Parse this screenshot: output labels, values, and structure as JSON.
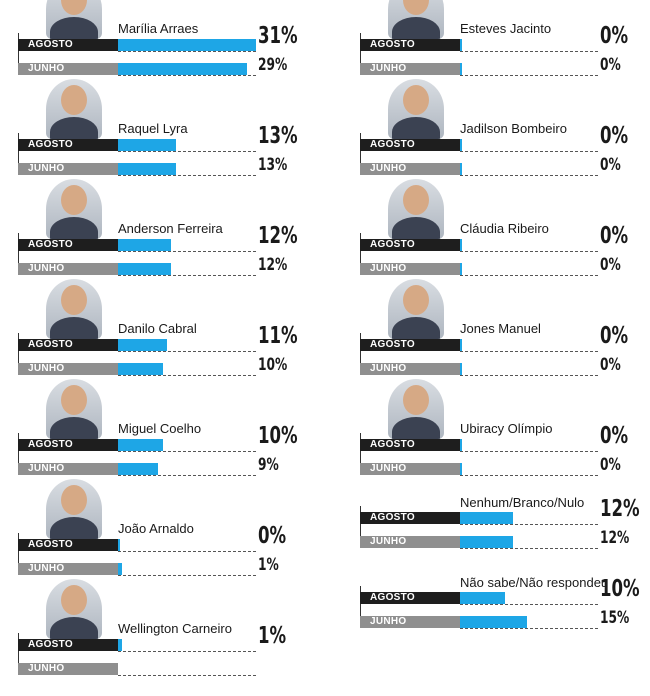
{
  "chart_data": {
    "type": "bar",
    "row_labels": {
      "current": "AGOSTO",
      "previous": "JUNHO"
    },
    "series": [
      {
        "name": "AGOSTO",
        "values": [
          31,
          13,
          12,
          11,
          10,
          0,
          1,
          0,
          0,
          0,
          0,
          0,
          12,
          10
        ]
      },
      {
        "name": "JUNHO",
        "values": [
          29,
          13,
          12,
          10,
          9,
          1,
          null,
          0,
          0,
          0,
          0,
          0,
          12,
          15
        ]
      }
    ],
    "categories": [
      "Marília Arraes",
      "Raquel Lyra",
      "Anderson Ferreira",
      "Danilo Cabral",
      "Miguel Coelho",
      "João Arnaldo",
      "Wellington Carneiro",
      "Esteves Jacinto",
      "Jadilson Bombeiro",
      "Cláudia Ribeiro",
      "Jones Manuel",
      "Ubiracy Olímpio",
      "Nenhum/Branco/Nulo",
      "Não sabe/Não respondeu"
    ],
    "items": [
      {
        "name": "Marília Arraes",
        "agosto": 31,
        "agosto_label": "31%",
        "junho": 29,
        "junho_label": "29%",
        "photo": true
      },
      {
        "name": "Raquel Lyra",
        "agosto": 13,
        "agosto_label": "13%",
        "junho": 13,
        "junho_label": "13%",
        "photo": true
      },
      {
        "name": "Anderson Ferreira",
        "agosto": 12,
        "agosto_label": "12%",
        "junho": 12,
        "junho_label": "12%",
        "photo": true
      },
      {
        "name": "Danilo Cabral",
        "agosto": 11,
        "agosto_label": "11%",
        "junho": 10,
        "junho_label": "10%",
        "photo": true
      },
      {
        "name": "Miguel Coelho",
        "agosto": 10,
        "agosto_label": "10%",
        "junho": 9,
        "junho_label": "9%",
        "photo": true
      },
      {
        "name": "João Arnaldo",
        "agosto": 0,
        "agosto_label": "0%",
        "junho": 1,
        "junho_label": "1%",
        "photo": true
      },
      {
        "name": "Wellington Carneiro",
        "agosto": 1,
        "agosto_label": "1%",
        "junho": null,
        "junho_label": "",
        "photo": true
      },
      {
        "name": "Esteves Jacinto",
        "agosto": 0,
        "agosto_label": "0%",
        "junho": 0,
        "junho_label": "0%",
        "photo": true
      },
      {
        "name": "Jadilson Bombeiro",
        "agosto": 0,
        "agosto_label": "0%",
        "junho": 0,
        "junho_label": "0%",
        "photo": true
      },
      {
        "name": "Cláudia Ribeiro",
        "agosto": 0,
        "agosto_label": "0%",
        "junho": 0,
        "junho_label": "0%",
        "photo": true
      },
      {
        "name": "Jones Manuel",
        "agosto": 0,
        "agosto_label": "0%",
        "junho": 0,
        "junho_label": "0%",
        "photo": true
      },
      {
        "name": "Ubiracy Olímpio",
        "agosto": 0,
        "agosto_label": "0%",
        "junho": 0,
        "junho_label": "0%",
        "photo": true
      },
      {
        "name": "Nenhum/Branco/Nulo",
        "agosto": 12,
        "agosto_label": "12%",
        "junho": 12,
        "junho_label": "12%",
        "photo": false
      },
      {
        "name": "Não sabe/Não respondeu",
        "agosto": 10,
        "agosto_label": "10%",
        "junho": 15,
        "junho_label": "15%",
        "photo": false
      }
    ],
    "xlim": [
      0,
      31
    ],
    "bar_color": "#1ea6e6",
    "current_label_color": "#1e1e1e",
    "previous_label_color": "#8f8f8f",
    "grid": false,
    "legend": "none"
  }
}
